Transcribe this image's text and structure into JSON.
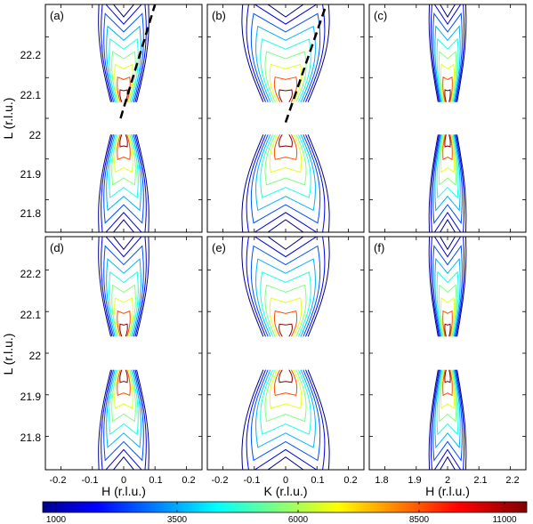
{
  "chart_data": {
    "type": "contour",
    "colorbar": {
      "ticks": [
        "1000",
        "3500",
        "6000",
        "8500",
        "11000"
      ],
      "range": [
        1000,
        11000
      ],
      "colormap": "jet"
    },
    "contour_levels": [
      1000,
      2000,
      3000,
      4000,
      5000,
      6000,
      7000,
      9000,
      11000
    ],
    "panels": [
      {
        "label": "(a)",
        "row": 0,
        "col": 0,
        "axis": "H",
        "xlim": [
          -0.25,
          0.25
        ],
        "ylim": [
          21.72,
          22.28
        ],
        "center_x": 0,
        "spread": 0.075,
        "gap": [
          21.96,
          22.04
        ],
        "dashed_line": {
          "x": [
            -0.01,
            0.1
          ],
          "y": [
            22.0,
            22.28
          ]
        },
        "type": "measured"
      },
      {
        "label": "(b)",
        "row": 0,
        "col": 1,
        "axis": "K",
        "xlim": [
          -0.25,
          0.25
        ],
        "ylim": [
          21.72,
          22.28
        ],
        "center_x": 0,
        "spread": 0.13,
        "gap": [
          21.96,
          22.04
        ],
        "dashed_line": {
          "x": [
            0.0,
            0.13
          ],
          "y": [
            21.99,
            22.28
          ]
        },
        "type": "measured"
      },
      {
        "label": "(c)",
        "row": 0,
        "col": 2,
        "axis": "H",
        "xlim": [
          1.75,
          2.25
        ],
        "ylim": [
          21.72,
          22.28
        ],
        "center_x": 2.0,
        "spread": 0.055,
        "gap": [
          21.96,
          22.04
        ],
        "type": "measured"
      },
      {
        "label": "(d)",
        "row": 1,
        "col": 0,
        "axis": "H",
        "xlim": [
          -0.25,
          0.25
        ],
        "ylim": [
          21.72,
          22.28
        ],
        "center_x": 0,
        "spread": 0.075,
        "gap": [
          21.96,
          22.04
        ],
        "type": "simulated"
      },
      {
        "label": "(e)",
        "row": 1,
        "col": 1,
        "axis": "K",
        "xlim": [
          -0.25,
          0.25
        ],
        "ylim": [
          21.72,
          22.28
        ],
        "center_x": 0,
        "spread": 0.13,
        "gap": [
          21.96,
          22.04
        ],
        "type": "simulated"
      },
      {
        "label": "(f)",
        "row": 1,
        "col": 2,
        "axis": "H",
        "xlim": [
          1.75,
          2.25
        ],
        "ylim": [
          21.72,
          22.28
        ],
        "center_x": 2.0,
        "spread": 0.055,
        "gap": [
          21.96,
          22.04
        ],
        "type": "simulated"
      }
    ],
    "y_ticks": [
      "21.8",
      "21.9",
      "22",
      "22.1",
      "22.2"
    ],
    "x_ticks_left": [
      "-0.2",
      "-0.1",
      "0",
      "0.1",
      "0.2"
    ],
    "x_ticks_right": [
      "1.8",
      "1.9",
      "2",
      "2.1",
      "2.2"
    ],
    "ylabel": "L (r.l.u.)",
    "xlabels": [
      "H (r.l.u.)",
      "K (r.l.u.)",
      "H (r.l.u.)"
    ]
  }
}
